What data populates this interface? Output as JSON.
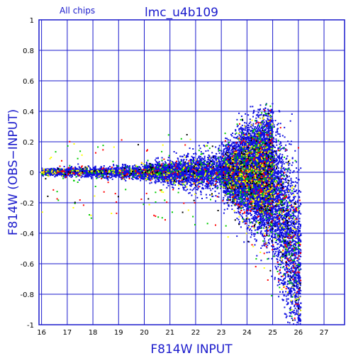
{
  "chart_data": {
    "type": "scatter",
    "title": "lmc_u4b109",
    "subtitle": "All chips",
    "xlabel": "F814W INPUT",
    "ylabel": "F814W (OBS−INPUT)",
    "xlim": [
      15.9,
      27.8
    ],
    "ylim": [
      -1,
      1
    ],
    "x_ticks": [
      16,
      17,
      18,
      19,
      20,
      21,
      22,
      23,
      24,
      25,
      26,
      27
    ],
    "y_ticks": [
      -1,
      -0.8,
      -0.6,
      -0.4,
      -0.2,
      0,
      0.2,
      0.4,
      0.6,
      0.8,
      1
    ],
    "grid": true,
    "series": [
      {
        "color": "#1010e0",
        "points_approx": 12000
      },
      {
        "color": "#ff0000",
        "points_approx": 500
      },
      {
        "color": "#00cc00",
        "points_approx": 700
      },
      {
        "color": "#ffff00",
        "points_approx": 500
      },
      {
        "color": "#000000",
        "points_approx": 300
      }
    ],
    "distribution": {
      "description_values": {
        "x_start": 16,
        "x_end": 26,
        "scatter_sigma_at_16": 0.01,
        "scatter_sigma_at_20": 0.02,
        "scatter_sigma_at_24": 0.1,
        "scatter_sigma_at_25": 0.2,
        "max_positive_offset": 0.45,
        "min_negative_offset": -1
      }
    }
  },
  "colors": {
    "frame": "#1a1acc",
    "grid": "#1a1acc",
    "text_blue": "#1a1acc"
  }
}
